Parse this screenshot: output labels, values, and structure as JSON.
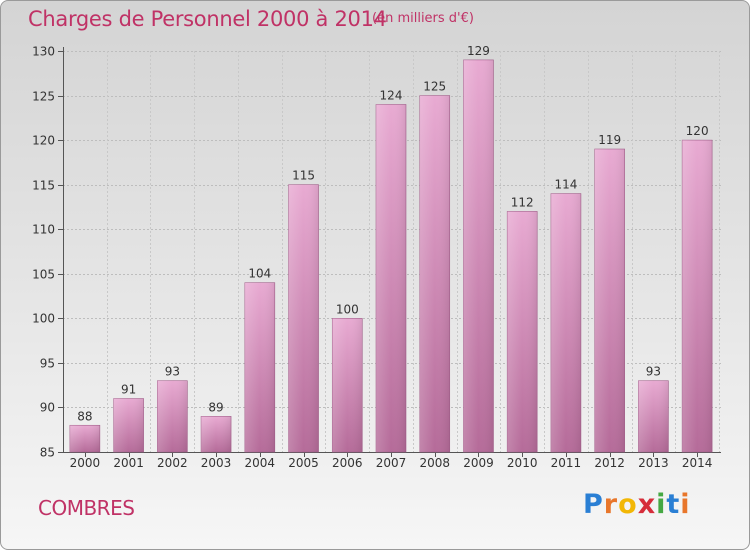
{
  "title": "Charges de Personnel 2000 à 2014",
  "subtitle": "(en milliers d'€)",
  "location": "COMBRES",
  "logo": {
    "letters": [
      "P",
      "r",
      "o",
      "x",
      "i",
      "t",
      "i"
    ]
  },
  "colors": {
    "title": "#c03266",
    "bar_top": "#e6a6ce",
    "bar_bottom": "#b86e9c"
  },
  "chart_data": {
    "type": "bar",
    "title": "Charges de Personnel 2000 à 2014",
    "subtitle": "(en milliers d'€)",
    "xlabel": "",
    "ylabel": "",
    "categories": [
      "2000",
      "2001",
      "2002",
      "2003",
      "2004",
      "2005",
      "2006",
      "2007",
      "2008",
      "2009",
      "2010",
      "2011",
      "2012",
      "2013",
      "2014"
    ],
    "values": [
      88,
      91,
      93,
      89,
      104,
      115,
      100,
      124,
      125,
      129,
      112,
      114,
      119,
      93,
      120
    ],
    "ylim": [
      85,
      130
    ],
    "yticks": [
      85,
      90,
      95,
      100,
      105,
      110,
      115,
      120,
      125,
      130
    ],
    "grid": true
  }
}
